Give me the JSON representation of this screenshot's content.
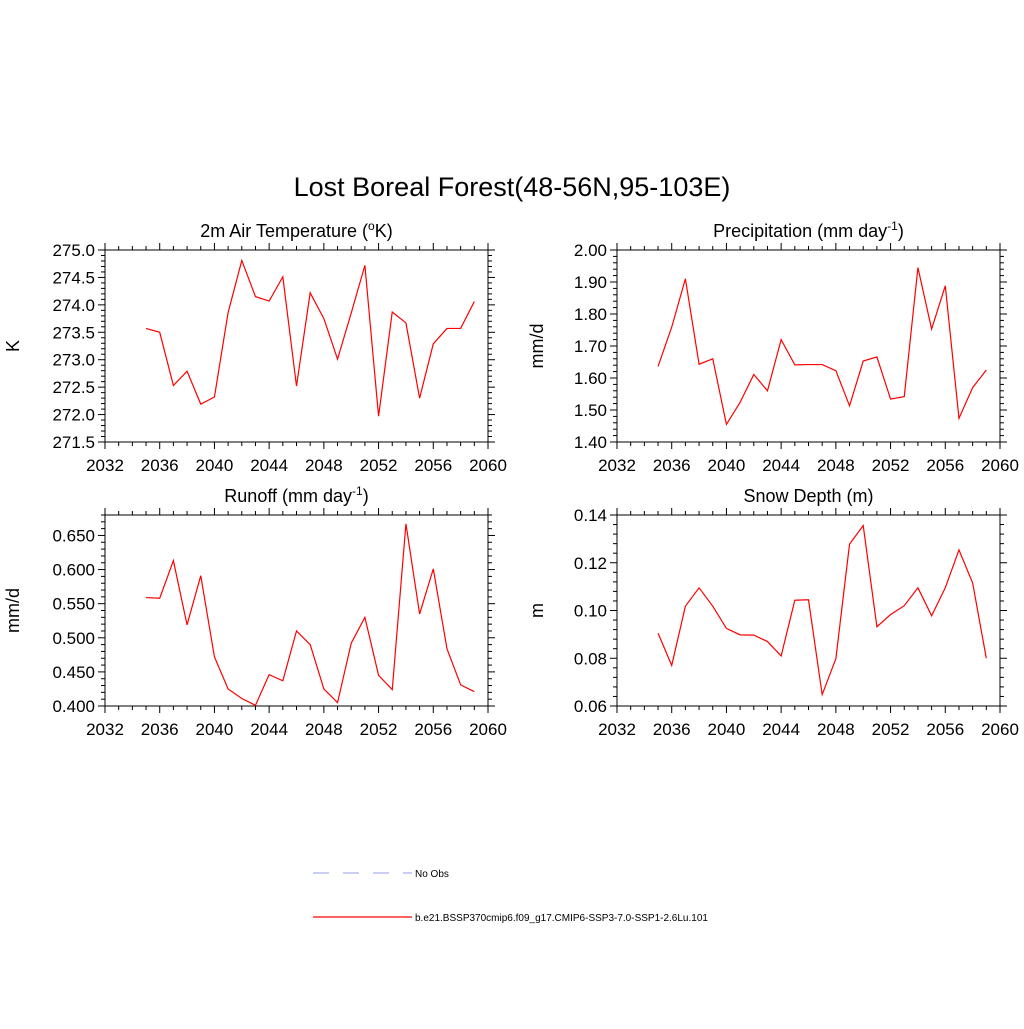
{
  "title": "Lost Boreal Forest(48-56N,95-103E)",
  "legend": [
    {
      "label": "No Obs",
      "color": "#aab0e6",
      "dash": true
    },
    {
      "label": "b.e21.BSSP370cmip6.f09_g17.CMIP6-SSP3-7.0-SSP1-2.6Lu.101",
      "color": "#ff0000",
      "dash": false
    }
  ],
  "chart_data": [
    {
      "type": "line",
      "title": {
        "pre": "2m Air Temperature (",
        "sup": "o",
        "post": "K)"
      },
      "ylabel": "K",
      "xlim": [
        2032,
        2060
      ],
      "ylim": [
        271.5,
        275.0
      ],
      "xticks": [
        2032,
        2036,
        2040,
        2044,
        2048,
        2052,
        2056,
        2060
      ],
      "yticks": [
        "271.5",
        "272.0",
        "272.5",
        "273.0",
        "273.5",
        "274.0",
        "274.5",
        "275.0"
      ],
      "x": [
        2035,
        2036,
        2037,
        2038,
        2039,
        2040,
        2041,
        2042,
        2043,
        2044,
        2045,
        2046,
        2047,
        2048,
        2049,
        2050,
        2051,
        2052,
        2053,
        2054,
        2055,
        2056,
        2057,
        2058,
        2059
      ],
      "series": [
        {
          "color": "#ff0000",
          "values": [
            273.57,
            273.5,
            272.53,
            272.79,
            272.19,
            272.32,
            273.86,
            274.81,
            274.15,
            274.07,
            274.51,
            272.52,
            274.22,
            273.75,
            273.01,
            273.85,
            274.72,
            271.97,
            273.87,
            273.67,
            272.3,
            273.29,
            273.57,
            273.57,
            274.06
          ]
        }
      ]
    },
    {
      "type": "line",
      "title": {
        "pre": "Precipitation (mm day",
        "sup": "-1",
        "post": ")"
      },
      "ylabel": "mm/d",
      "xlim": [
        2032,
        2060
      ],
      "ylim": [
        1.4,
        2.0
      ],
      "xticks": [
        2032,
        2036,
        2040,
        2044,
        2048,
        2052,
        2056,
        2060
      ],
      "yticks": [
        "1.40",
        "1.50",
        "1.60",
        "1.70",
        "1.80",
        "1.90",
        "2.00"
      ],
      "x": [
        2035,
        2036,
        2037,
        2038,
        2039,
        2040,
        2041,
        2042,
        2043,
        2044,
        2045,
        2046,
        2047,
        2048,
        2049,
        2050,
        2051,
        2052,
        2053,
        2054,
        2055,
        2056,
        2057,
        2058,
        2059
      ],
      "series": [
        {
          "color": "#ff0000",
          "values": [
            1.636,
            1.759,
            1.91,
            1.643,
            1.66,
            1.455,
            1.524,
            1.611,
            1.56,
            1.72,
            1.641,
            1.642,
            1.642,
            1.623,
            1.513,
            1.653,
            1.666,
            1.534,
            1.542,
            1.945,
            1.753,
            1.888,
            1.474,
            1.57,
            1.625
          ]
        }
      ]
    },
    {
      "type": "line",
      "title": {
        "pre": "Runoff (mm day",
        "sup": "-1",
        "post": ")"
      },
      "ylabel": "mm/d",
      "xlim": [
        2032,
        2060
      ],
      "ylim": [
        0.4,
        0.68
      ],
      "xticks": [
        2032,
        2036,
        2040,
        2044,
        2048,
        2052,
        2056,
        2060
      ],
      "yticks": [
        "0.400",
        "0.450",
        "0.500",
        "0.550",
        "0.600",
        "0.650"
      ],
      "x": [
        2035,
        2036,
        2037,
        2038,
        2039,
        2040,
        2041,
        2042,
        2043,
        2044,
        2045,
        2046,
        2047,
        2048,
        2049,
        2050,
        2051,
        2052,
        2053,
        2054,
        2055,
        2056,
        2057,
        2058,
        2059
      ],
      "series": [
        {
          "color": "#ff0000",
          "values": [
            0.559,
            0.558,
            0.613,
            0.519,
            0.591,
            0.472,
            0.425,
            0.411,
            0.401,
            0.446,
            0.437,
            0.51,
            0.49,
            0.425,
            0.405,
            0.492,
            0.53,
            0.445,
            0.424,
            0.667,
            0.535,
            0.601,
            0.484,
            0.431,
            0.421
          ]
        }
      ]
    },
    {
      "type": "line",
      "title": {
        "pre": "Snow Depth (m)",
        "sup": "",
        "post": ""
      },
      "ylabel": "m",
      "xlim": [
        2032,
        2060
      ],
      "ylim": [
        0.06,
        0.14
      ],
      "xticks": [
        2032,
        2036,
        2040,
        2044,
        2048,
        2052,
        2056,
        2060
      ],
      "yticks": [
        "0.06",
        "0.08",
        "0.10",
        "0.12",
        "0.14"
      ],
      "x": [
        2035,
        2036,
        2037,
        2038,
        2039,
        2040,
        2041,
        2042,
        2043,
        2044,
        2045,
        2046,
        2047,
        2048,
        2049,
        2050,
        2051,
        2052,
        2053,
        2054,
        2055,
        2056,
        2057,
        2058,
        2059
      ],
      "series": [
        {
          "color": "#ff0000",
          "values": [
            0.0905,
            0.077,
            0.1018,
            0.1095,
            0.1018,
            0.0925,
            0.0898,
            0.0897,
            0.087,
            0.081,
            0.1043,
            0.1045,
            0.0648,
            0.0798,
            0.1278,
            0.1356,
            0.0932,
            0.0983,
            0.102,
            0.1095,
            0.0978,
            0.1095,
            0.1254,
            0.1115,
            0.08
          ]
        }
      ]
    }
  ]
}
